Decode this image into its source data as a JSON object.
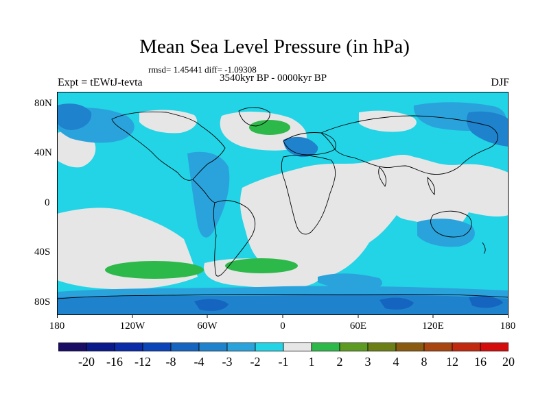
{
  "figure": {
    "title": "Mean Sea Level Pressure (in hPa)",
    "stats": "rmsd= 1.45441 diff= -1.09308",
    "period": "3540kyr BP - 0000kyr BP",
    "experiment": "Expt = tEWtJ-tevta",
    "season": "DJF"
  },
  "axes": {
    "lat_labels": [
      "80N",
      "40N",
      "0",
      "40S",
      "80S"
    ],
    "lon_labels": [
      "180",
      "120W",
      "60W",
      "0",
      "60E",
      "120E",
      "180"
    ]
  },
  "colorbar": {
    "labels": [
      "-20",
      "-16",
      "-12",
      "-8",
      "-4",
      "-3",
      "-2",
      "-1",
      "1",
      "2",
      "3",
      "4",
      "8",
      "12",
      "16",
      "20"
    ],
    "colors": [
      "#1a0d66",
      "#0a1a8a",
      "#0a2ca8",
      "#0a44b8",
      "#1565c0",
      "#1f82cc",
      "#2aa3dc",
      "#22d4e6",
      "#e6e6e6",
      "#2db84a",
      "#5c9a22",
      "#6b7f16",
      "#8a5a10",
      "#a84510",
      "#c22a10",
      "#d40c0c"
    ]
  },
  "map_colors": {
    "ocean_base": "#22d4e6",
    "neutral": "#e6e6e6",
    "negative_mid": "#2aa3dc",
    "negative_strong": "#1f82cc",
    "negative_deep": "#1565c0",
    "positive": "#2db84a",
    "coast": "#000000"
  }
}
